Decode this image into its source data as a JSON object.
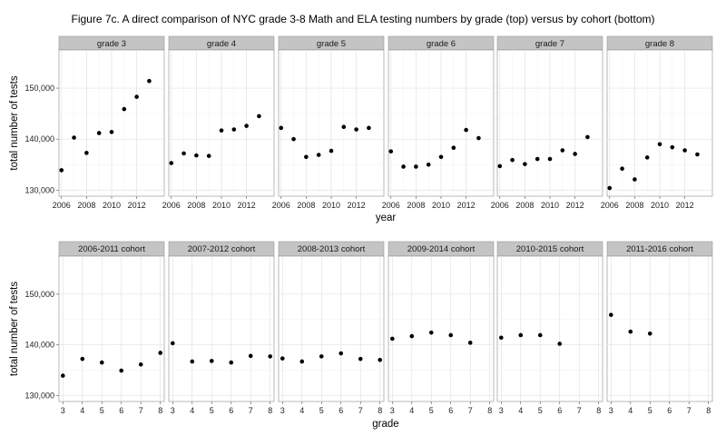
{
  "title": "Figure 7c. A direct comparison of NYC grade 3-8 Math and ELA testing numbers by grade (top) versus by cohort (bottom)",
  "chart_data": [
    {
      "type": "scatter",
      "facet_var": "grade",
      "xlabel": "year",
      "ylabel": "total number of tests",
      "xlim": [
        2005.8,
        2014.2
      ],
      "ylim": [
        128800,
        157500
      ],
      "xticks": [
        2006,
        2008,
        2010,
        2012
      ],
      "yticks": [
        130000,
        140000,
        150000
      ],
      "ytick_labels": [
        "130,000",
        "140,000",
        "150,000"
      ],
      "grid": true,
      "panels": [
        {
          "label": "grade 3",
          "x": [
            2006,
            2007,
            2008,
            2009,
            2010,
            2011,
            2012,
            2013
          ],
          "y": [
            133900,
            140300,
            137300,
            141200,
            141400,
            145900,
            148300,
            151400
          ]
        },
        {
          "label": "grade 4",
          "x": [
            2006,
            2007,
            2008,
            2009,
            2010,
            2011,
            2012,
            2013
          ],
          "y": [
            135300,
            137200,
            136800,
            136700,
            141700,
            141900,
            142600,
            144500
          ]
        },
        {
          "label": "grade 5",
          "x": [
            2006,
            2007,
            2008,
            2009,
            2010,
            2011,
            2012,
            2013
          ],
          "y": [
            142200,
            140000,
            136500,
            136900,
            137700,
            142400,
            141900,
            142200
          ]
        },
        {
          "label": "grade 6",
          "x": [
            2006,
            2007,
            2008,
            2009,
            2010,
            2011,
            2012,
            2013
          ],
          "y": [
            137600,
            134600,
            134600,
            135000,
            136500,
            138300,
            141800,
            140200
          ]
        },
        {
          "label": "grade 7",
          "x": [
            2006,
            2007,
            2008,
            2009,
            2010,
            2011,
            2012,
            2013
          ],
          "y": [
            134700,
            135900,
            135100,
            136100,
            136100,
            137800,
            137100,
            140400
          ]
        },
        {
          "label": "grade 8",
          "x": [
            2006,
            2007,
            2008,
            2009,
            2010,
            2011,
            2012,
            2013
          ],
          "y": [
            130400,
            134200,
            132100,
            136400,
            139000,
            138400,
            137800,
            137000
          ]
        }
      ]
    },
    {
      "type": "scatter",
      "facet_var": "cohort",
      "xlabel": "grade",
      "ylabel": "total number of tests",
      "xlim": [
        2.8,
        8.2
      ],
      "ylim": [
        128800,
        157500
      ],
      "xticks": [
        3,
        4,
        5,
        6,
        7,
        8
      ],
      "yticks": [
        130000,
        140000,
        150000
      ],
      "ytick_labels": [
        "130,000",
        "140,000",
        "150,000"
      ],
      "grid": true,
      "panels": [
        {
          "label": "2006-2011 cohort",
          "x": [
            3,
            4,
            5,
            6,
            7,
            8
          ],
          "y": [
            133900,
            137200,
            136500,
            134900,
            136100,
            138400
          ]
        },
        {
          "label": "2007-2012 cohort",
          "x": [
            3,
            4,
            5,
            6,
            7,
            8
          ],
          "y": [
            140300,
            136700,
            136800,
            136500,
            137800,
            137700
          ]
        },
        {
          "label": "2008-2013 cohort",
          "x": [
            3,
            4,
            5,
            6,
            7,
            8
          ],
          "y": [
            137300,
            136700,
            137700,
            138300,
            137200,
            137000
          ]
        },
        {
          "label": "2009-2014 cohort",
          "x": [
            3,
            4,
            5,
            6,
            7
          ],
          "y": [
            141200,
            141700,
            142400,
            141900,
            140400
          ]
        },
        {
          "label": "2010-2015 cohort",
          "x": [
            3,
            4,
            5,
            6
          ],
          "y": [
            141400,
            141900,
            141900,
            140200
          ]
        },
        {
          "label": "2011-2016 cohort",
          "x": [
            3,
            4,
            5
          ],
          "y": [
            145900,
            142600,
            142200
          ]
        }
      ]
    }
  ]
}
